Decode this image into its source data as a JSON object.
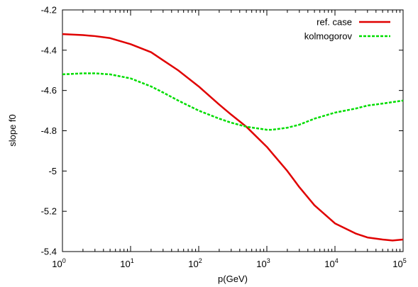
{
  "chart_data": {
    "type": "line",
    "xlabel": "p(GeV)",
    "ylabel": "slope f0",
    "xscale": "log",
    "xlim": [
      1,
      100000
    ],
    "ylim": [
      -5.4,
      -4.2
    ],
    "x_ticks": [
      {
        "base": "10",
        "exp": "0",
        "value": 1
      },
      {
        "base": "10",
        "exp": "1",
        "value": 10
      },
      {
        "base": "10",
        "exp": "2",
        "value": 100
      },
      {
        "base": "10",
        "exp": "3",
        "value": 1000
      },
      {
        "base": "10",
        "exp": "4",
        "value": 10000
      },
      {
        "base": "10",
        "exp": "5",
        "value": 100000
      }
    ],
    "y_ticks": [
      {
        "label": "-4.2",
        "value": -4.2
      },
      {
        "label": "-4.4",
        "value": -4.4
      },
      {
        "label": "-4.6",
        "value": -4.6
      },
      {
        "label": "-4.8",
        "value": -4.8
      },
      {
        "label": "-5",
        "value": -5.0
      },
      {
        "label": "-5.2",
        "value": -5.2
      },
      {
        "label": "-5.4",
        "value": -5.4
      }
    ],
    "grid": false,
    "legend_position": "top-right",
    "series": [
      {
        "name": "ref. case",
        "color": "#e00000",
        "dash": "solid",
        "x": [
          1,
          2,
          3,
          5,
          10,
          20,
          30,
          50,
          100,
          200,
          300,
          500,
          1000,
          2000,
          3000,
          5000,
          10000,
          20000,
          30000,
          50000,
          70000,
          100000
        ],
        "y": [
          -4.32,
          -4.325,
          -4.33,
          -4.34,
          -4.37,
          -4.41,
          -4.45,
          -4.5,
          -4.58,
          -4.67,
          -4.72,
          -4.78,
          -4.88,
          -5.0,
          -5.08,
          -5.17,
          -5.26,
          -5.31,
          -5.33,
          -5.34,
          -5.345,
          -5.34
        ]
      },
      {
        "name": "kolmogorov",
        "color": "#00dd00",
        "dash": "dashed",
        "x": [
          1,
          2,
          3,
          5,
          10,
          20,
          30,
          50,
          100,
          200,
          300,
          500,
          1000,
          1200,
          2000,
          3000,
          5000,
          10000,
          20000,
          30000,
          50000,
          100000
        ],
        "y": [
          -4.52,
          -4.515,
          -4.515,
          -4.52,
          -4.54,
          -4.58,
          -4.61,
          -4.65,
          -4.7,
          -4.74,
          -4.76,
          -4.78,
          -4.795,
          -4.795,
          -4.785,
          -4.77,
          -4.74,
          -4.71,
          -4.69,
          -4.675,
          -4.665,
          -4.65
        ]
      }
    ]
  }
}
